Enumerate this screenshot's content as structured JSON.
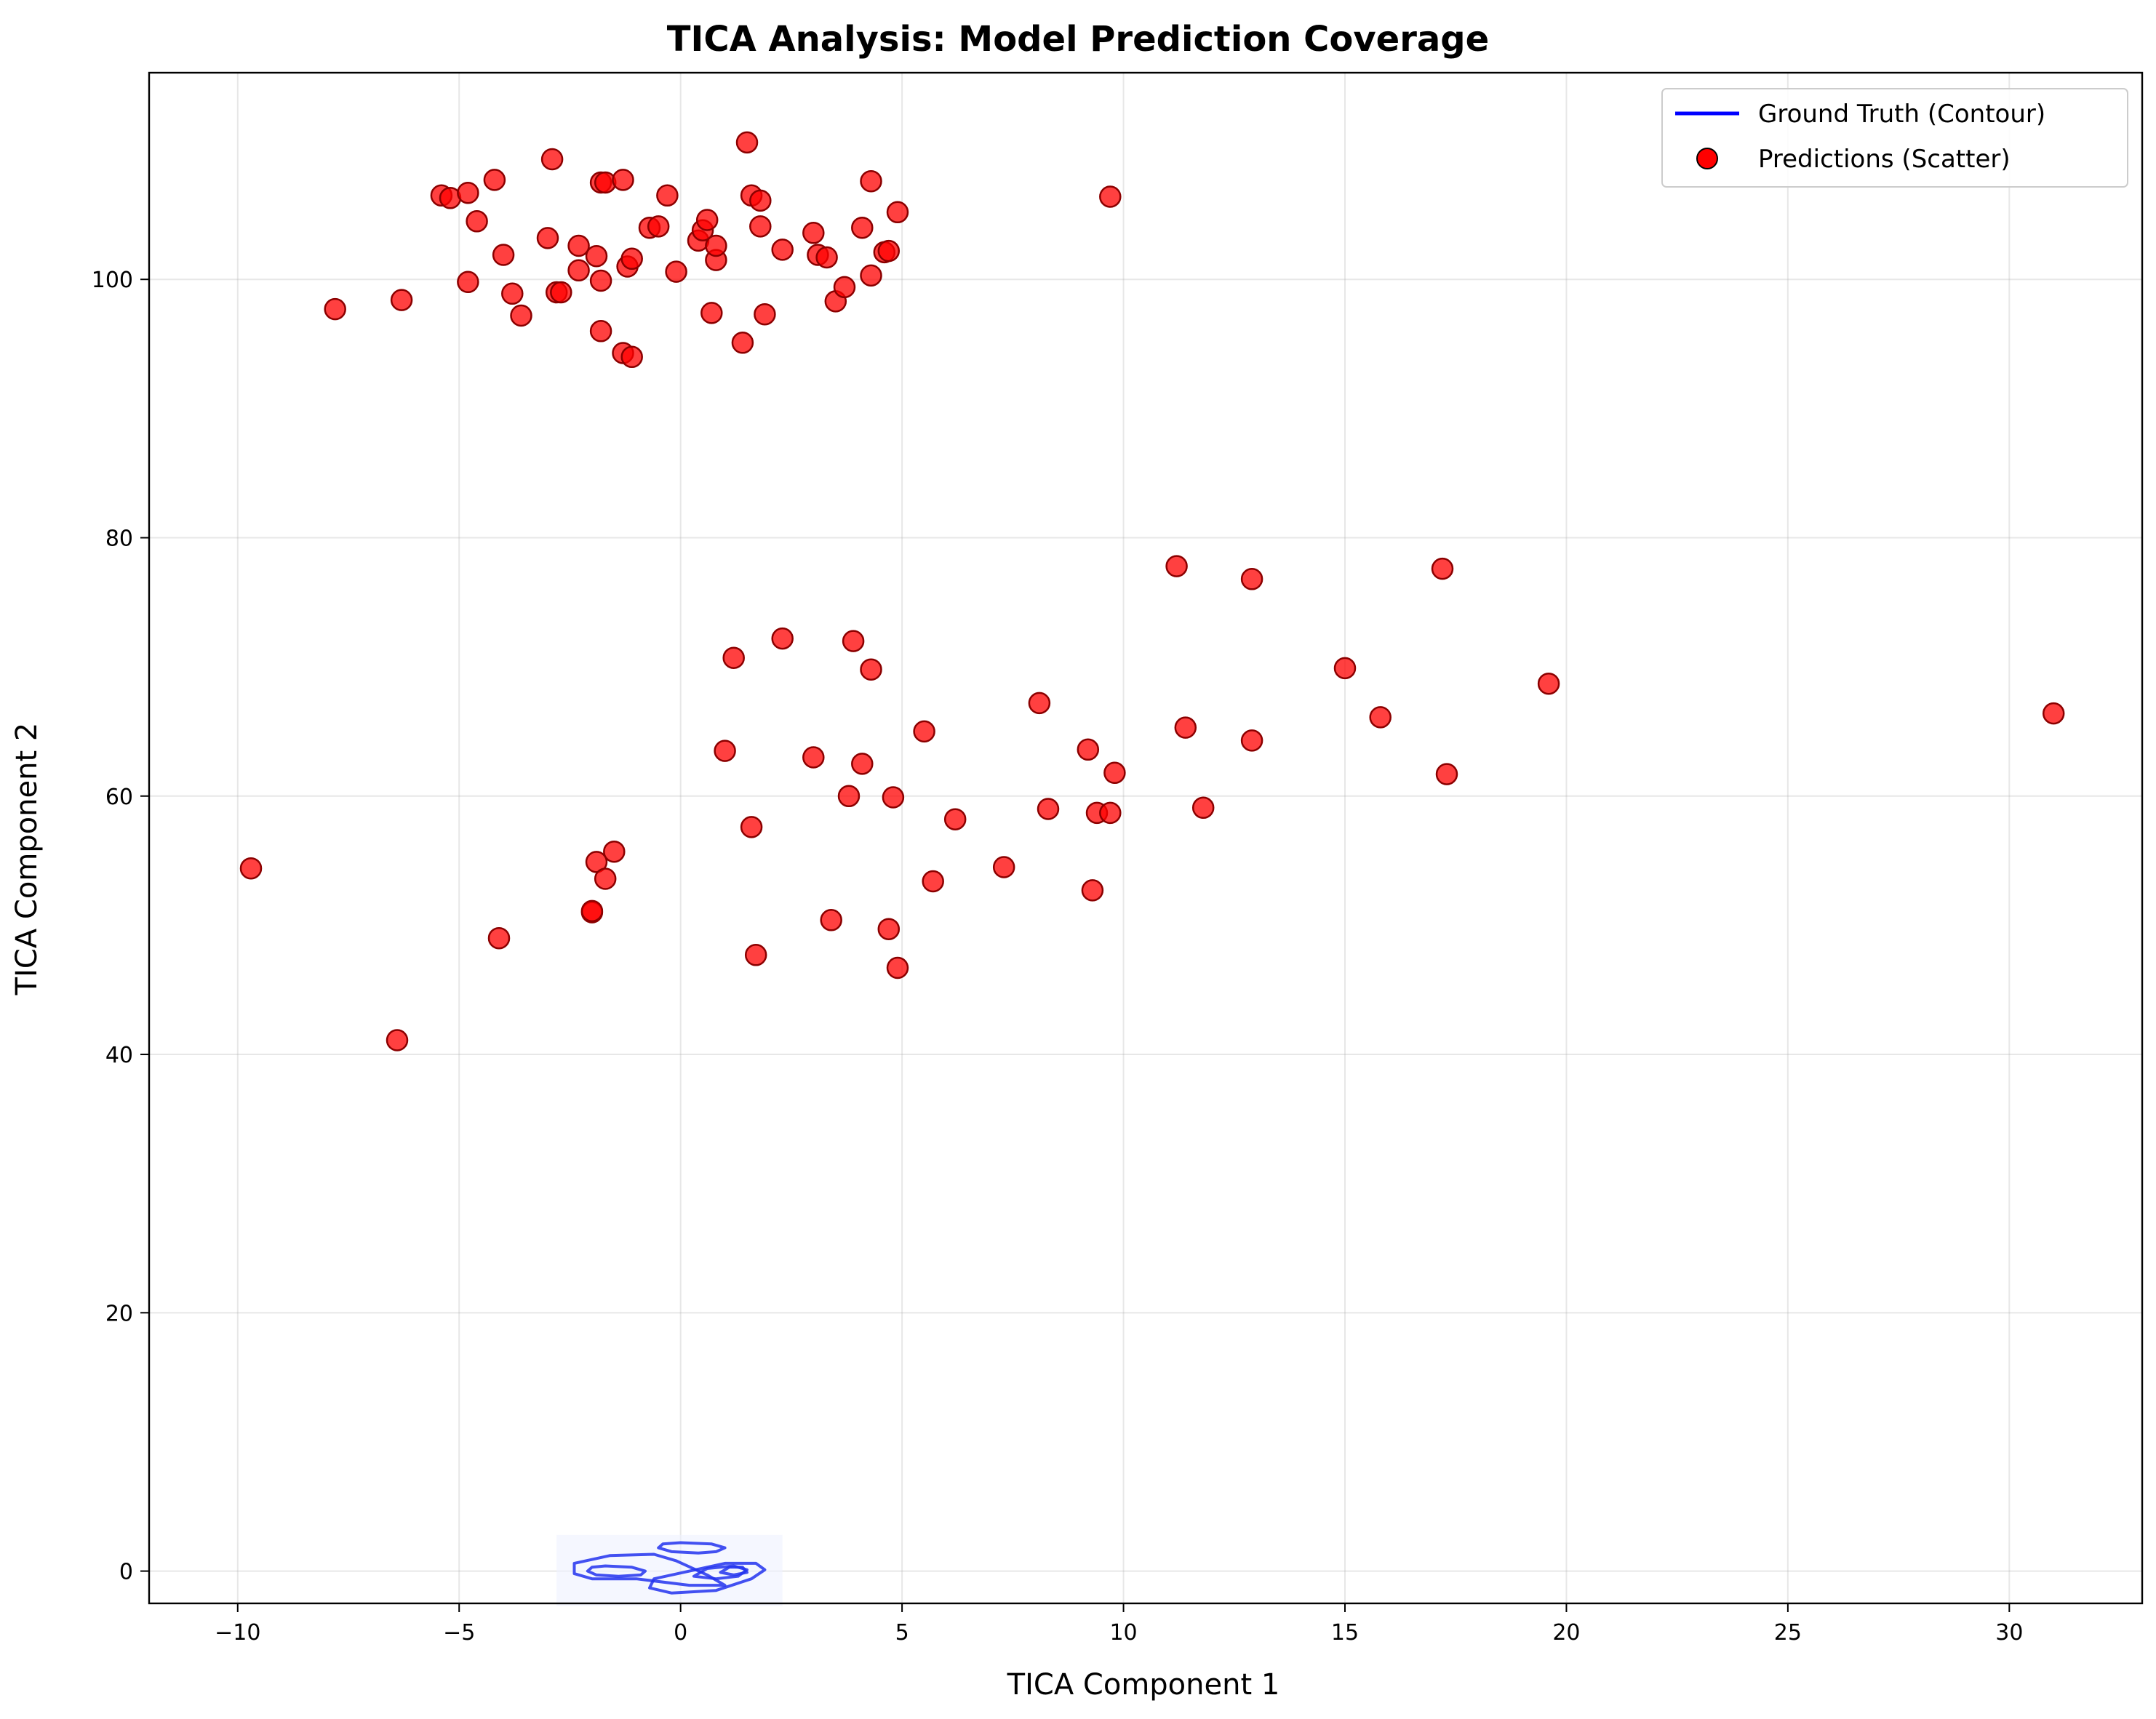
{
  "chart_data": {
    "type": "scatter",
    "title": "TICA Analysis: Model Prediction Coverage",
    "xlabel": "TICA Component 1",
    "ylabel": "TICA Component 2",
    "xlim": [
      -12,
      33
    ],
    "ylim": [
      -2.5,
      116
    ],
    "xticks": [
      -10,
      -5,
      0,
      5,
      10,
      15,
      20,
      25,
      30
    ],
    "yticks": [
      0,
      20,
      40,
      60,
      80,
      100
    ],
    "grid": true,
    "legend": {
      "placement": "top-right",
      "entries": [
        {
          "label": "Ground Truth (Contour)",
          "kind": "line",
          "color": "#0000ff"
        },
        {
          "label": "Predictions (Scatter)",
          "kind": "marker",
          "color": "#ff0000"
        }
      ]
    },
    "colors": {
      "prediction_fill": "#ff0000",
      "prediction_edge": "#8b0000",
      "contour": "#2233ee"
    },
    "series": [
      {
        "name": "Predictions (Scatter)",
        "kind": "scatter",
        "points": [
          [
            -9.7,
            54.4
          ],
          [
            -7.8,
            97.7
          ],
          [
            -6.4,
            41.1
          ],
          [
            -6.3,
            98.4
          ],
          [
            -5.4,
            106.5
          ],
          [
            -5.2,
            106.3
          ],
          [
            -4.8,
            106.7
          ],
          [
            -4.8,
            99.8
          ],
          [
            -4.6,
            104.5
          ],
          [
            -4.2,
            107.7
          ],
          [
            -4.1,
            49.0
          ],
          [
            -4.0,
            101.9
          ],
          [
            -3.8,
            98.9
          ],
          [
            -3.6,
            97.2
          ],
          [
            -3.0,
            103.2
          ],
          [
            -2.9,
            109.3
          ],
          [
            -2.8,
            99.0
          ],
          [
            -2.7,
            99.0
          ],
          [
            -2.3,
            102.6
          ],
          [
            -2.3,
            100.7
          ],
          [
            -2.0,
            51.0
          ],
          [
            -2.0,
            51.1
          ],
          [
            -1.9,
            101.8
          ],
          [
            -1.9,
            54.9
          ],
          [
            -1.8,
            107.5
          ],
          [
            -1.8,
            99.9
          ],
          [
            -1.8,
            96.0
          ],
          [
            -1.7,
            107.5
          ],
          [
            -1.7,
            53.6
          ],
          [
            -1.5,
            55.7
          ],
          [
            -1.3,
            107.7
          ],
          [
            -1.3,
            94.3
          ],
          [
            -1.2,
            101.0
          ],
          [
            -1.1,
            101.6
          ],
          [
            -1.1,
            94.0
          ],
          [
            -0.7,
            104.0
          ],
          [
            -0.5,
            104.1
          ],
          [
            -0.3,
            106.5
          ],
          [
            -0.1,
            100.6
          ],
          [
            0.4,
            103.0
          ],
          [
            0.5,
            103.8
          ],
          [
            0.6,
            104.6
          ],
          [
            0.7,
            97.4
          ],
          [
            0.8,
            101.5
          ],
          [
            0.8,
            102.6
          ],
          [
            1.0,
            63.5
          ],
          [
            1.2,
            70.7
          ],
          [
            1.4,
            95.1
          ],
          [
            1.5,
            110.6
          ],
          [
            1.6,
            57.6
          ],
          [
            1.6,
            106.5
          ],
          [
            1.7,
            47.7
          ],
          [
            1.8,
            106.1
          ],
          [
            1.8,
            104.1
          ],
          [
            1.9,
            97.3
          ],
          [
            2.3,
            102.3
          ],
          [
            2.3,
            72.2
          ],
          [
            3.0,
            103.6
          ],
          [
            3.0,
            63.0
          ],
          [
            3.1,
            101.9
          ],
          [
            3.3,
            101.7
          ],
          [
            3.4,
            50.4
          ],
          [
            3.5,
            98.3
          ],
          [
            3.7,
            99.4
          ],
          [
            3.8,
            60.0
          ],
          [
            3.9,
            72.0
          ],
          [
            4.1,
            104.0
          ],
          [
            4.1,
            62.5
          ],
          [
            4.3,
            107.6
          ],
          [
            4.3,
            100.3
          ],
          [
            4.3,
            69.8
          ],
          [
            4.6,
            102.1
          ],
          [
            4.7,
            102.2
          ],
          [
            4.7,
            49.7
          ],
          [
            4.8,
            59.9
          ],
          [
            4.9,
            105.2
          ],
          [
            4.9,
            46.7
          ],
          [
            5.5,
            65.0
          ],
          [
            5.7,
            53.4
          ],
          [
            6.2,
            58.2
          ],
          [
            7.3,
            54.5
          ],
          [
            8.1,
            67.2
          ],
          [
            8.3,
            59.0
          ],
          [
            9.2,
            63.6
          ],
          [
            9.3,
            52.7
          ],
          [
            9.4,
            58.7
          ],
          [
            9.7,
            58.7
          ],
          [
            9.7,
            106.4
          ],
          [
            9.8,
            61.8
          ],
          [
            11.2,
            77.8
          ],
          [
            11.4,
            65.3
          ],
          [
            11.8,
            59.1
          ],
          [
            12.9,
            76.8
          ],
          [
            12.9,
            64.3
          ],
          [
            15.0,
            69.9
          ],
          [
            15.8,
            66.1
          ],
          [
            17.2,
            77.6
          ],
          [
            17.3,
            61.7
          ],
          [
            19.6,
            68.7
          ],
          [
            31.0,
            66.4
          ]
        ]
      },
      {
        "name": "Ground Truth (Contour)",
        "kind": "contour",
        "rings": [
          [
            [
              -2.1,
              0.0
            ],
            [
              -1.9,
              -0.3
            ],
            [
              -1.4,
              -0.4
            ],
            [
              -0.9,
              -0.3
            ],
            [
              -0.8,
              0.0
            ],
            [
              -1.1,
              0.3
            ],
            [
              -1.7,
              0.4
            ],
            [
              -2.0,
              0.3
            ]
          ],
          [
            [
              -2.4,
              -0.2
            ],
            [
              -2.0,
              -0.6
            ],
            [
              -1.0,
              -0.6
            ],
            [
              0.2,
              -1.1
            ],
            [
              1.0,
              -1.1
            ],
            [
              0.6,
              -0.3
            ],
            [
              -0.1,
              0.8
            ],
            [
              -0.6,
              1.3
            ],
            [
              -1.6,
              1.2
            ],
            [
              -2.4,
              0.6
            ]
          ],
          [
            [
              -0.5,
              1.8
            ],
            [
              -0.2,
              1.5
            ],
            [
              0.4,
              1.4
            ],
            [
              0.8,
              1.5
            ],
            [
              1.0,
              1.8
            ],
            [
              0.7,
              2.1
            ],
            [
              0.0,
              2.2
            ],
            [
              -0.4,
              2.1
            ]
          ],
          [
            [
              -0.7,
              -1.3
            ],
            [
              -0.2,
              -1.7
            ],
            [
              0.8,
              -1.5
            ],
            [
              1.6,
              -0.6
            ],
            [
              1.9,
              0.1
            ],
            [
              1.7,
              0.6
            ],
            [
              1.0,
              0.6
            ],
            [
              0.2,
              0.0
            ],
            [
              -0.6,
              -0.6
            ]
          ],
          [
            [
              0.3,
              -0.4
            ],
            [
              0.8,
              -0.6
            ],
            [
              1.3,
              -0.4
            ],
            [
              1.5,
              0.1
            ],
            [
              1.2,
              0.4
            ],
            [
              0.6,
              0.2
            ]
          ],
          [
            [
              0.9,
              -0.1
            ],
            [
              1.2,
              -0.3
            ],
            [
              1.5,
              -0.1
            ],
            [
              1.4,
              0.3
            ],
            [
              1.1,
              0.3
            ]
          ]
        ]
      }
    ]
  }
}
